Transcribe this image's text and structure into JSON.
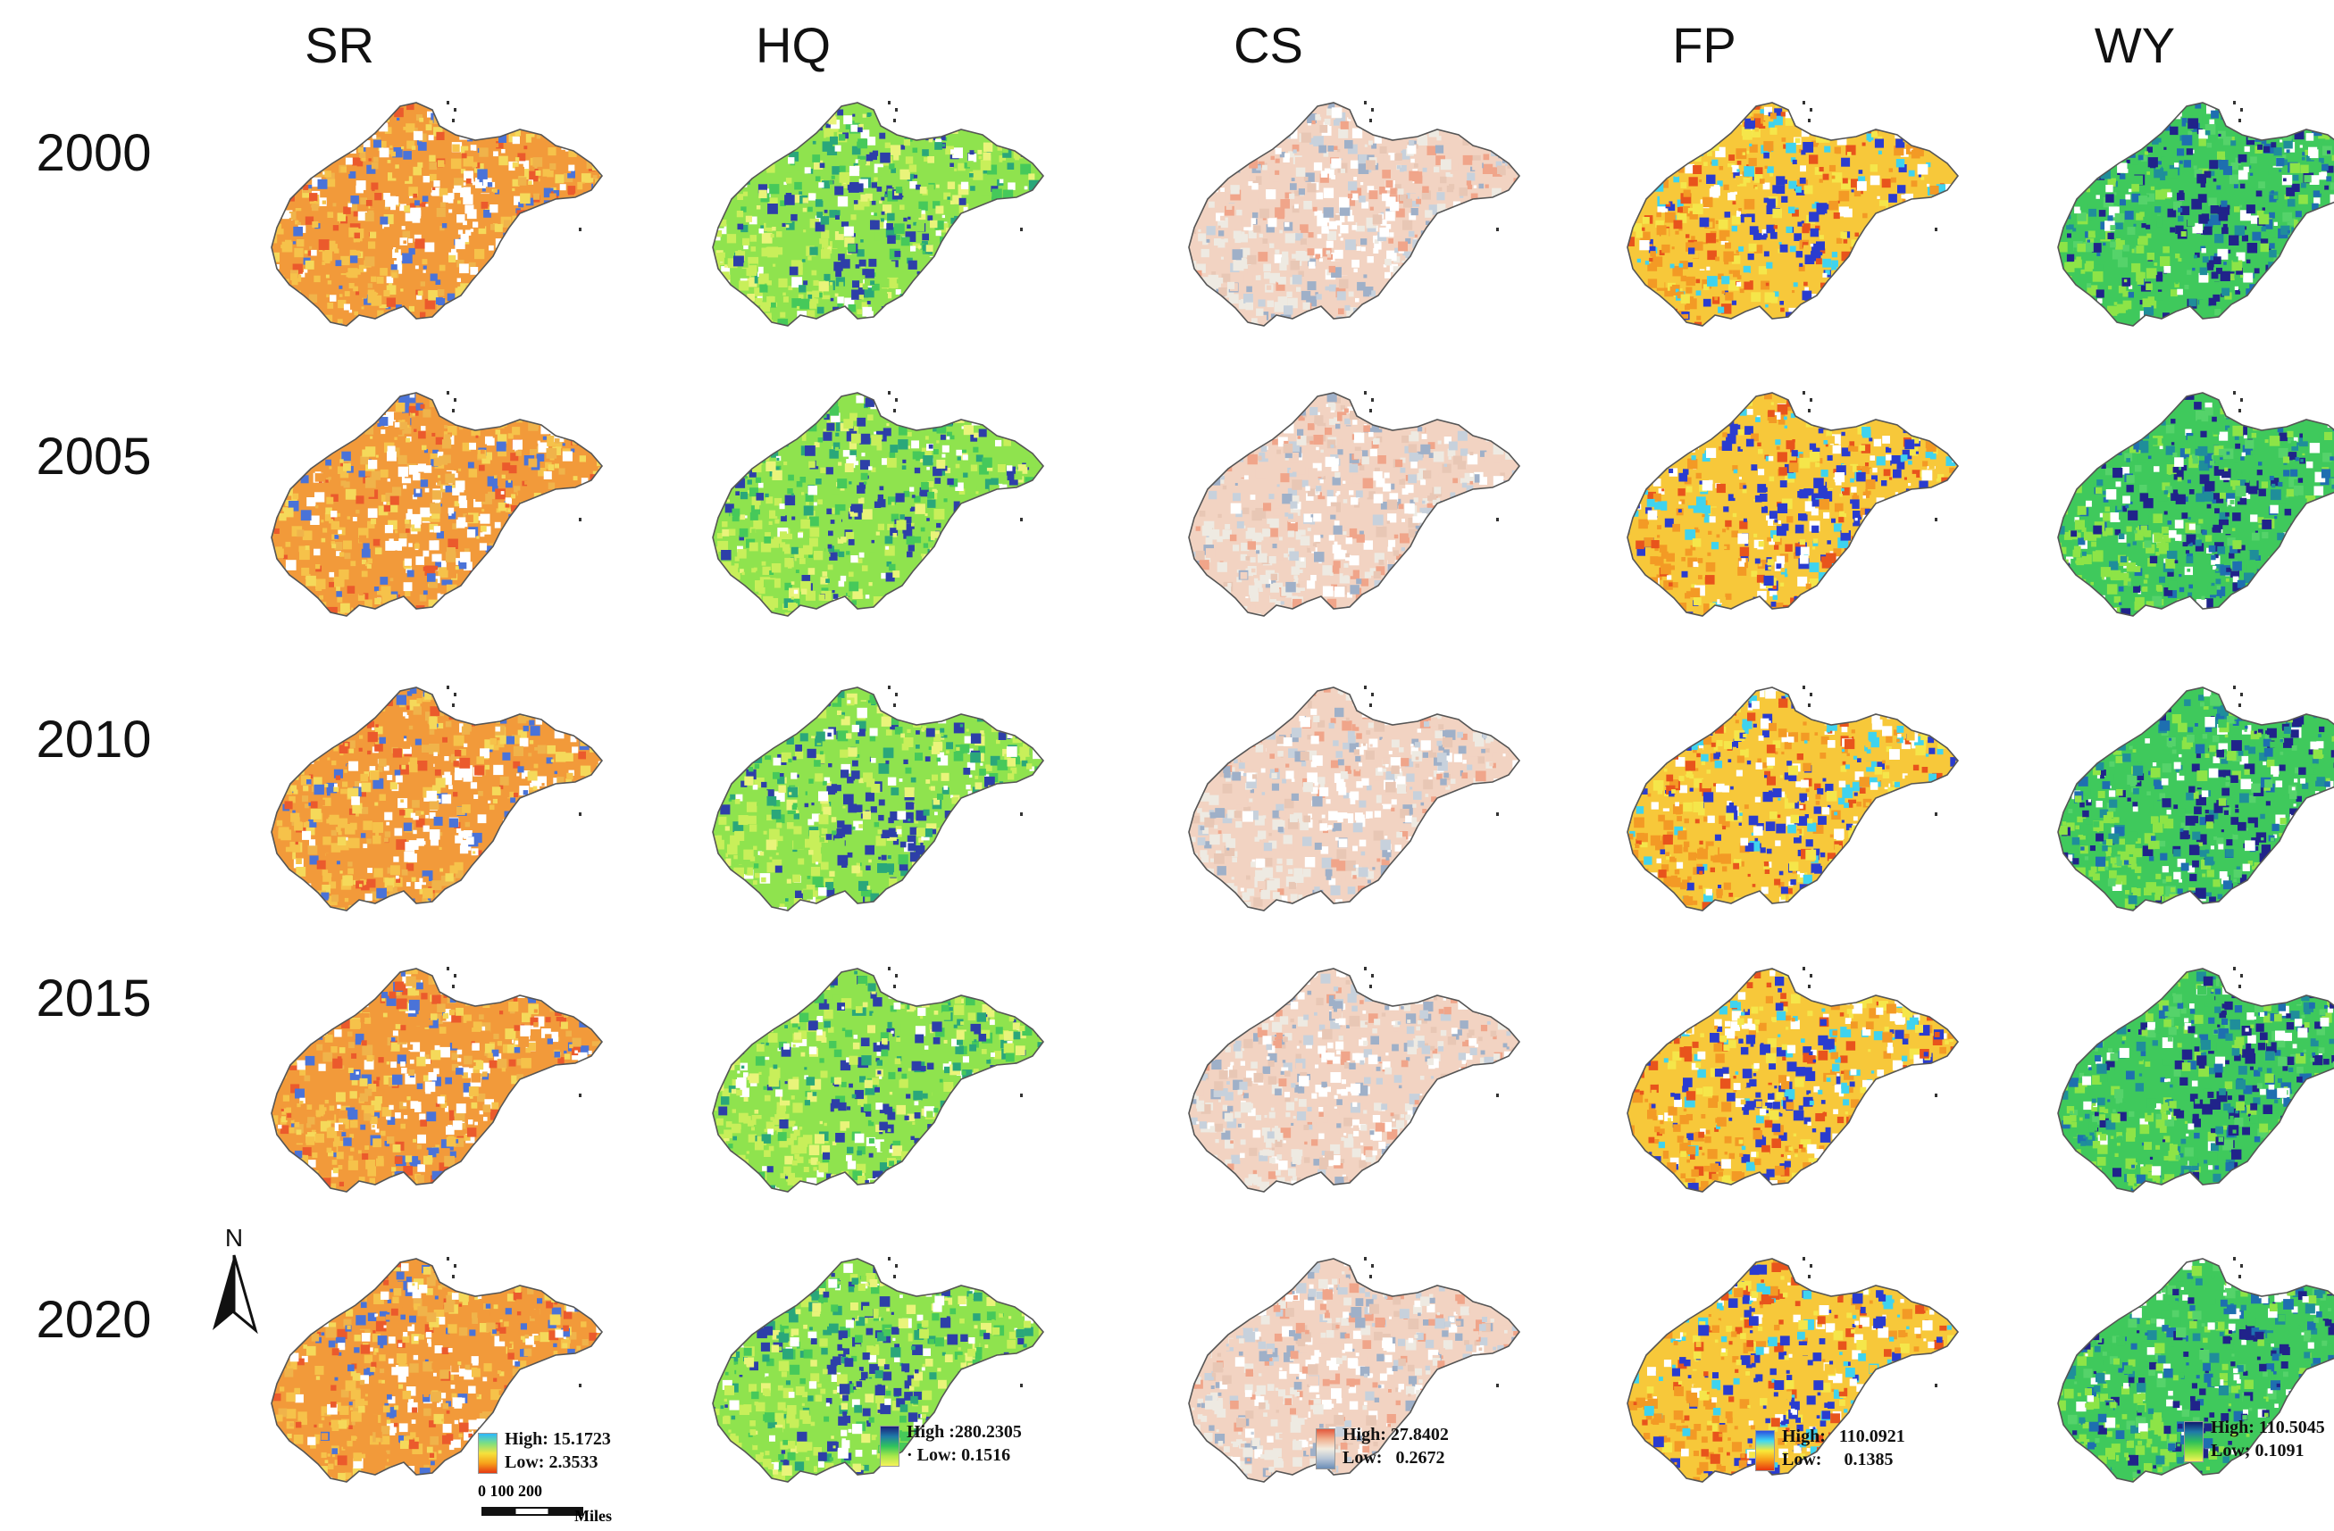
{
  "columns": [
    "SR",
    "HQ",
    "CS",
    "FP",
    "WY"
  ],
  "rows": [
    "2000",
    "2005",
    "2010",
    "2015",
    "2020"
  ],
  "legends": [
    {
      "id": "SR",
      "high_label": "High:",
      "high_value": "15.1723",
      "low_label": "Low:",
      "low_value": "2.3533",
      "ramp": [
        "#2bb8ff",
        "#7fe07f",
        "#f5e23c",
        "#f7a21a",
        "#e63a12"
      ]
    },
    {
      "id": "HQ",
      "high_label": "High :",
      "high_value": "280.2305",
      "low_label": "· Low:",
      "low_value": "0.1516",
      "ramp": [
        "#1b1f7a",
        "#1f7aa8",
        "#2fc45c",
        "#a8e84a",
        "#f6f25a"
      ]
    },
    {
      "id": "CS",
      "high_label": "High:",
      "high_value": "27.8402",
      "low_label": "Low:",
      "low_value": "0.2672",
      "ramp": [
        "#e2583c",
        "#f1b08f",
        "#f2ece0",
        "#b7c5d6",
        "#6b8db6"
      ]
    },
    {
      "id": "FP",
      "high_label": "High:",
      "high_value": "110.0921",
      "low_label": "Low:",
      "low_value": "0.1385",
      "ramp": [
        "#2b4fe0",
        "#3fd9f2",
        "#f8ea38",
        "#f79a18",
        "#e8360f"
      ]
    },
    {
      "id": "WY",
      "high_label": "High:",
      "high_value": "110.5045",
      "low_label": "Low;",
      "low_value": "0.1091",
      "ramp": [
        "#0e1a6e",
        "#1f7aa8",
        "#2dc05a",
        "#8be43c",
        "#f6f25a"
      ]
    }
  ],
  "north_label": "N",
  "scale": {
    "ticks": "0  100  200",
    "units": "Miles"
  },
  "palettes": {
    "SR": [
      "#f29a3a",
      "#f6c24a",
      "#eb5a2c",
      "#f5d95a",
      "#ffffff",
      "#4a73d8",
      "#f0b34a"
    ],
    "HQ": [
      "#8fe34e",
      "#c8ef5a",
      "#46c95a",
      "#ffffff",
      "#2d3fa8",
      "#e9f47a",
      "#2aa77a"
    ],
    "CS": [
      "#f2d3c2",
      "#eeeae2",
      "#f0a58a",
      "#c7d1dc",
      "#ffffff",
      "#e8c7b5",
      "#9fb0c8"
    ],
    "FP": [
      "#f7c83a",
      "#f39a25",
      "#3fd3ee",
      "#ffffff",
      "#2a3ccf",
      "#f5e64a",
      "#e8541c"
    ],
    "WY": [
      "#3fc95c",
      "#8de447",
      "#ffffff",
      "#1f8e9a",
      "#20238a",
      "#55d36a",
      "#1e6fb0"
    ]
  }
}
